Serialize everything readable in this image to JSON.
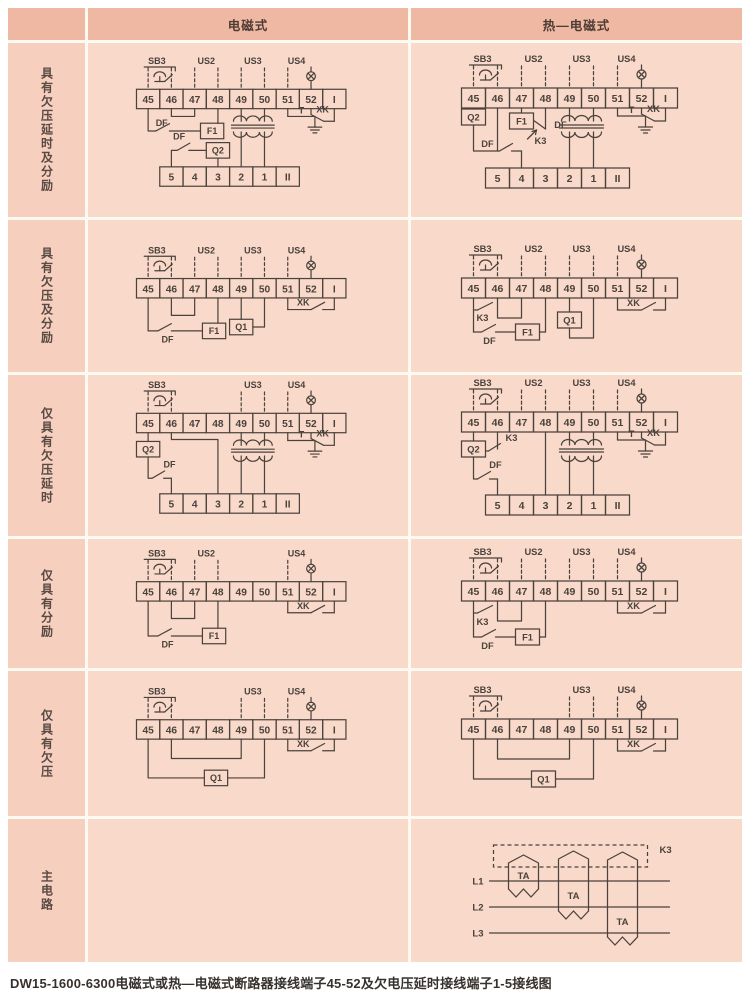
{
  "caption": "DW15-1600-6300电磁式或热—电磁式断路器接线端子45-52及欠电压延时接线端子1-5接线图",
  "columns": [
    "电磁式",
    "热—电磁式"
  ],
  "row_labels": [
    "具有欠压延时及分励",
    "具有欠压及分励",
    "仅具有欠压延时",
    "仅具有分励",
    "仅具有欠压",
    "主电路"
  ],
  "colors": {
    "cell_bg": "#f8d9ca",
    "sidebar_bg": "#f6cfbe",
    "header_bg": "#efb8a3",
    "gap": "#fdfaf2",
    "line": "#4b423c",
    "caption_text": "#37312d"
  },
  "icons": [
    "pushbutton-icon",
    "lamp-icon",
    "ground-icon",
    "transformer-icon",
    "switch-contact-icon"
  ],
  "diagrams": {
    "r1c1": {
      "buses": [
        {
          "label": "SB3",
          "cols": [
            0,
            1
          ],
          "type": "pushbutton"
        },
        {
          "label": "US2",
          "cols": [
            2,
            3
          ]
        },
        {
          "label": "US3",
          "cols": [
            4,
            5
          ]
        },
        {
          "label": "US4",
          "cols": [
            6
          ],
          "lamp_col": 7
        }
      ],
      "terminals": [
        "45",
        "46",
        "47",
        "48",
        "49",
        "50",
        "51",
        "52",
        "I"
      ],
      "bottom_terminals": [
        "5",
        "4",
        "3",
        "2",
        "1",
        "II"
      ],
      "labels": {
        "df": "DF",
        "df2": "DF",
        "f1": "F1",
        "q2": "Q2",
        "t": "T",
        "xk": "XK"
      }
    },
    "r1c2": {
      "buses": [
        {
          "label": "SB3",
          "cols": [
            0,
            1
          ],
          "type": "pushbutton"
        },
        {
          "label": "US2",
          "cols": [
            2,
            3
          ]
        },
        {
          "label": "US3",
          "cols": [
            4,
            5
          ]
        },
        {
          "label": "US4",
          "cols": [
            6
          ],
          "lamp_col": 7
        }
      ],
      "terminals": [
        "45",
        "46",
        "47",
        "48",
        "49",
        "50",
        "51",
        "52",
        "I"
      ],
      "bottom_terminals": [
        "5",
        "4",
        "3",
        "2",
        "1",
        "II"
      ],
      "labels": {
        "q2": "Q2",
        "f1": "F1",
        "k3": "K3",
        "df": "DF",
        "df2": "DF",
        "t": "T",
        "xk": "XK"
      }
    },
    "r2c1": {
      "buses": [
        {
          "label": "SB3",
          "cols": [
            0,
            1
          ],
          "type": "pushbutton"
        },
        {
          "label": "US2",
          "cols": [
            2,
            3
          ]
        },
        {
          "label": "US3",
          "cols": [
            4,
            5
          ]
        },
        {
          "label": "US4",
          "cols": [
            6
          ],
          "lamp_col": 7
        }
      ],
      "terminals": [
        "45",
        "46",
        "47",
        "48",
        "49",
        "50",
        "51",
        "52",
        "I"
      ],
      "labels": {
        "df": "DF",
        "f1": "F1",
        "q1": "Q1",
        "xk": "XK"
      }
    },
    "r2c2": {
      "buses": [
        {
          "label": "SB3",
          "cols": [
            0,
            1
          ],
          "type": "pushbutton"
        },
        {
          "label": "US2",
          "cols": [
            2,
            3
          ]
        },
        {
          "label": "US3",
          "cols": [
            4,
            5
          ]
        },
        {
          "label": "US4",
          "cols": [
            6
          ],
          "lamp_col": 7
        }
      ],
      "terminals": [
        "45",
        "46",
        "47",
        "48",
        "49",
        "50",
        "51",
        "52",
        "I"
      ],
      "labels": {
        "k3": "K3",
        "df": "DF",
        "f1": "F1",
        "q1": "Q1",
        "xk": "XK"
      }
    },
    "r3c1": {
      "buses": [
        {
          "label": "SB3",
          "cols": [
            0,
            1
          ],
          "type": "pushbutton"
        },
        {
          "label": "US3",
          "cols": [
            4,
            5
          ]
        },
        {
          "label": "US4",
          "cols": [
            6
          ],
          "lamp_col": 7
        }
      ],
      "terminals": [
        "45",
        "46",
        "47",
        "48",
        "49",
        "50",
        "51",
        "52",
        "I"
      ],
      "bottom_terminals": [
        "5",
        "4",
        "3",
        "2",
        "1",
        "II"
      ],
      "labels": {
        "q2": "Q2",
        "df": "DF",
        "t": "T",
        "xk": "XK"
      }
    },
    "r3c2": {
      "buses": [
        {
          "label": "SB3",
          "cols": [
            0,
            1
          ],
          "type": "pushbutton"
        },
        {
          "label": "US2",
          "cols": [
            2,
            3
          ]
        },
        {
          "label": "US3",
          "cols": [
            4,
            5
          ]
        },
        {
          "label": "US4",
          "cols": [
            6
          ],
          "lamp_col": 7
        }
      ],
      "terminals": [
        "45",
        "46",
        "47",
        "48",
        "49",
        "50",
        "51",
        "52",
        "I"
      ],
      "bottom_terminals": [
        "5",
        "4",
        "3",
        "2",
        "1",
        "II"
      ],
      "labels": {
        "q2": "Q2",
        "k3": "K3",
        "df": "DF",
        "t": "T",
        "xk": "XK"
      }
    },
    "r4c1": {
      "buses": [
        {
          "label": "SB3",
          "cols": [
            0,
            1
          ],
          "type": "pushbutton"
        },
        {
          "label": "US2",
          "cols": [
            2,
            3
          ]
        },
        {
          "label": "US4",
          "cols": [
            6
          ],
          "lamp_col": 7
        }
      ],
      "terminals": [
        "45",
        "46",
        "47",
        "48",
        "49",
        "50",
        "51",
        "52",
        "I"
      ],
      "labels": {
        "df": "DF",
        "f1": "F1",
        "xk": "XK"
      }
    },
    "r4c2": {
      "buses": [
        {
          "label": "SB3",
          "cols": [
            0,
            1
          ],
          "type": "pushbutton"
        },
        {
          "label": "US2",
          "cols": [
            2,
            3
          ]
        },
        {
          "label": "US3",
          "cols": [
            4,
            5
          ]
        },
        {
          "label": "US4",
          "cols": [
            6
          ],
          "lamp_col": 7
        }
      ],
      "terminals": [
        "45",
        "46",
        "47",
        "48",
        "49",
        "50",
        "51",
        "52",
        "I"
      ],
      "labels": {
        "k3": "K3",
        "df": "DF",
        "f1": "F1",
        "xk": "XK"
      }
    },
    "r5c1": {
      "buses": [
        {
          "label": "SB3",
          "cols": [
            0,
            1
          ],
          "type": "pushbutton"
        },
        {
          "label": "US3",
          "cols": [
            4,
            5
          ]
        },
        {
          "label": "US4",
          "cols": [
            6
          ],
          "lamp_col": 7
        }
      ],
      "terminals": [
        "45",
        "46",
        "47",
        "48",
        "49",
        "50",
        "51",
        "52",
        "I"
      ],
      "labels": {
        "q1": "Q1",
        "xk": "XK"
      }
    },
    "r5c2": {
      "buses": [
        {
          "label": "SB3",
          "cols": [
            0,
            1
          ],
          "type": "pushbutton"
        },
        {
          "label": "US3",
          "cols": [
            4,
            5
          ]
        },
        {
          "label": "US4",
          "cols": [
            6
          ],
          "lamp_col": 7
        }
      ],
      "terminals": [
        "45",
        "46",
        "47",
        "48",
        "49",
        "50",
        "51",
        "52",
        "I"
      ],
      "labels": {
        "q1": "Q1",
        "xk": "XK"
      }
    },
    "r6c1": {
      "empty": true
    },
    "r6c2": {
      "k3": "K3",
      "ta": "TA",
      "phases": [
        "L1",
        "L2",
        "L3"
      ]
    }
  }
}
